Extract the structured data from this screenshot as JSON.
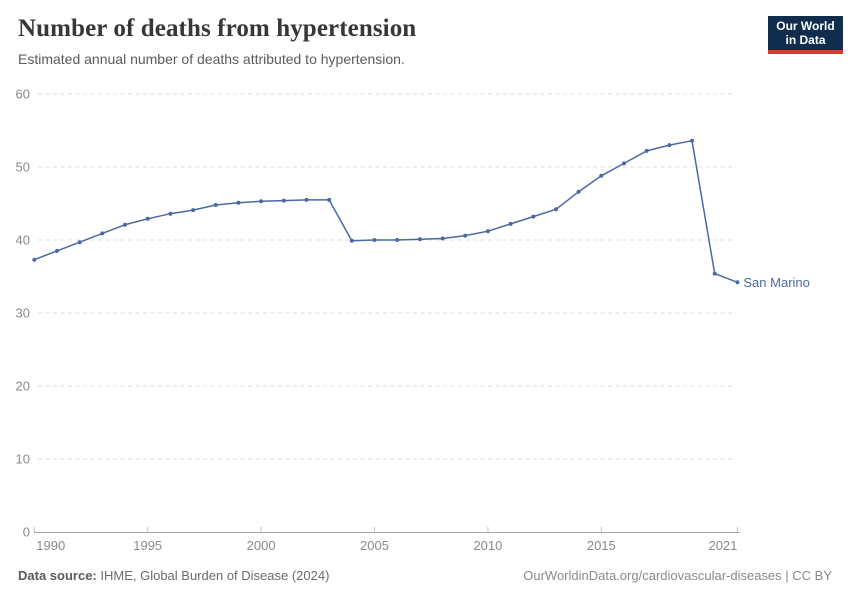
{
  "header": {
    "title": "Number of deaths from hypertension",
    "subtitle": "Estimated annual number of deaths attributed to hypertension.",
    "logo": {
      "line1": "Our World",
      "line2": "in Data"
    }
  },
  "footer": {
    "source_label": "Data source:",
    "source_text": "IHME, Global Burden of Disease (2024)",
    "credit": "OurWorldinData.org/cardiovascular-diseases | CC BY"
  },
  "colors": {
    "line": "#4a69a2",
    "grid": "#dcdcdc",
    "axis": "#a5a5a5",
    "axis_tick": "#c2c2c2",
    "tick_text": "#8a8a8a",
    "logo_bg": "#102d4e",
    "logo_red": "#d93a31"
  },
  "chart_data": {
    "type": "line",
    "title": "Number of deaths from hypertension",
    "xlabel": "",
    "ylabel": "",
    "xlim": [
      1990,
      2021
    ],
    "ylim": [
      0,
      60
    ],
    "xticks": [
      1990,
      1995,
      2000,
      2005,
      2010,
      2015,
      2021
    ],
    "yticks": [
      0,
      10,
      20,
      30,
      40,
      50,
      60
    ],
    "grid": "horizontal-dashed",
    "legend_position": "end-of-line-label",
    "end_label": "San Marino",
    "x": [
      1990,
      1991,
      1992,
      1993,
      1994,
      1995,
      1996,
      1997,
      1998,
      1999,
      2000,
      2001,
      2002,
      2003,
      2004,
      2005,
      2006,
      2007,
      2008,
      2009,
      2010,
      2011,
      2012,
      2013,
      2014,
      2015,
      2016,
      2017,
      2018,
      2019,
      2020,
      2021
    ],
    "series": [
      {
        "name": "San Marino",
        "values": [
          37.3,
          38.5,
          39.7,
          40.9,
          42.1,
          42.9,
          43.6,
          44.1,
          44.8,
          45.1,
          45.3,
          45.4,
          45.5,
          45.5,
          39.9,
          40.0,
          40.0,
          40.1,
          40.2,
          40.6,
          41.2,
          42.2,
          43.2,
          44.2,
          46.6,
          48.8,
          50.5,
          52.2,
          53.0,
          53.6,
          35.4,
          34.2
        ]
      }
    ]
  }
}
